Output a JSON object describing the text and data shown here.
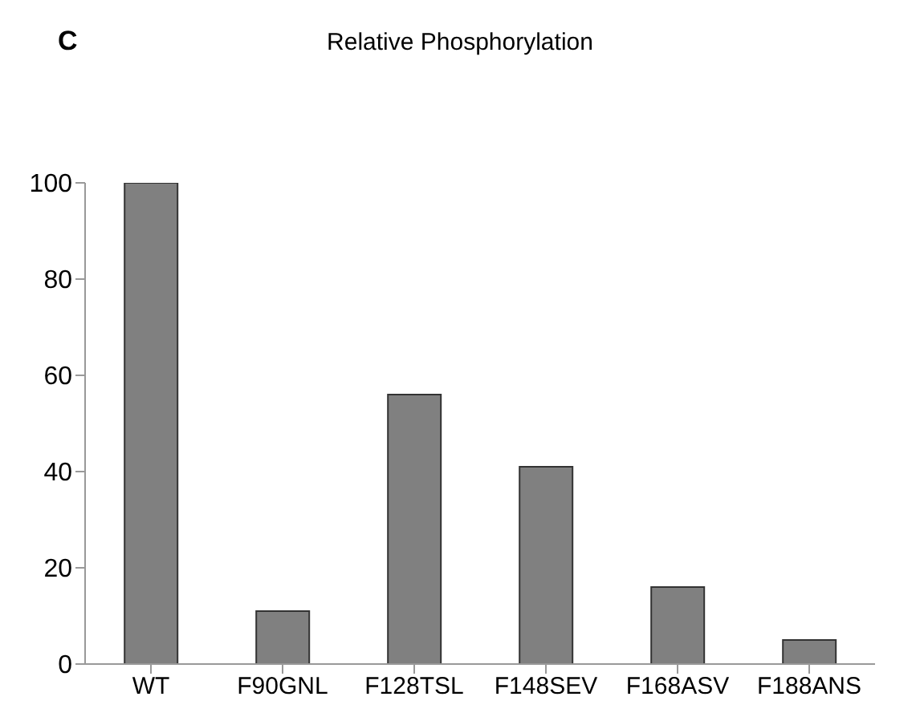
{
  "chart_data": {
    "type": "bar",
    "title": "Relative Phosphorylation",
    "annotations": [
      "C"
    ],
    "categories": [
      "WT",
      "F90GNL",
      "F128TSL",
      "F148SEV",
      "F168ASV",
      "F188ANS"
    ],
    "values": [
      100,
      11,
      56,
      41,
      16,
      5
    ],
    "color": "#808080",
    "ylim": [
      0,
      100
    ],
    "yticks": [
      0,
      20,
      40,
      60,
      80,
      100
    ],
    "grid": false
  }
}
